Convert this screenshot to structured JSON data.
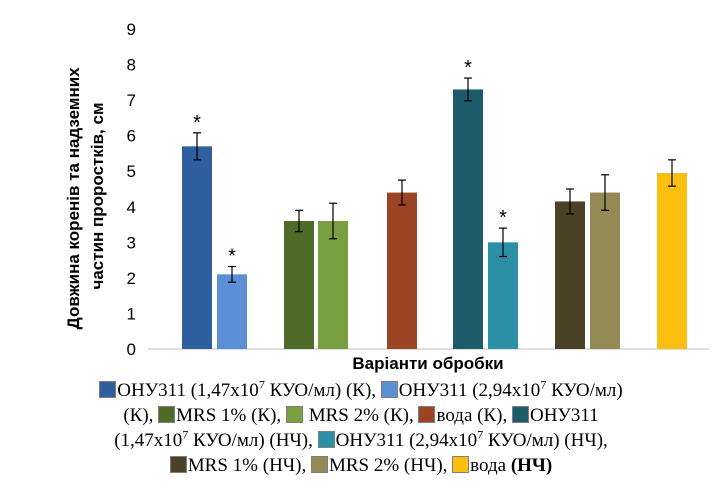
{
  "chart_data": {
    "type": "bar",
    "ylabel_line1": "Довжина коренів та надземних",
    "ylabel_line2": "частин проростків, см",
    "xlabel": "Варіанти обробки",
    "ylim": [
      0,
      9
    ],
    "yticks": [
      "0",
      "1",
      "2",
      "3",
      "4",
      "5",
      "6",
      "7",
      "8",
      "9"
    ],
    "grid": "none",
    "legend_position": "bottom",
    "series": [
      {
        "value": 5.7,
        "error": 0.38,
        "star": "*",
        "color": "#2f5f9e"
      },
      {
        "value": 2.1,
        "error": 0.22,
        "star": "*",
        "color": "#5b8fd6"
      },
      {
        "value": 3.6,
        "error": 0.3,
        "star": "",
        "color": "#4e6b2a"
      },
      {
        "value": 3.6,
        "error": 0.5,
        "star": "",
        "color": "#78a040"
      },
      {
        "value": 4.4,
        "error": 0.35,
        "star": "",
        "color": "#9c4524"
      },
      {
        "value": 7.3,
        "error": 0.32,
        "star": "*",
        "color": "#1d5a6a"
      },
      {
        "value": 3.0,
        "error": 0.4,
        "star": "*",
        "color": "#2b8fa6"
      },
      {
        "value": 4.15,
        "error": 0.35,
        "star": "",
        "color": "#4a4127"
      },
      {
        "value": 4.4,
        "error": 0.5,
        "star": "",
        "color": "#948a55"
      },
      {
        "value": 4.95,
        "error": 0.37,
        "star": "",
        "color": "#fcbf10"
      }
    ]
  },
  "legend": {
    "lines": [
      [
        {
          "color": "#2f5f9e",
          "pre": "ОНУ311 (1,47x10",
          "sup": "7",
          "post": " КУО/мл) (К),",
          "bold": ""
        },
        {
          "color": "#5b8fd6",
          "pre": "ОНУ311 (2,94x10",
          "sup": "7",
          "post": " КУО/мл)",
          "bold": ""
        }
      ],
      [
        {
          "color": "",
          "pre": "(К),",
          "sup": "",
          "post": "",
          "bold": ""
        },
        {
          "color": "#4e6b2a",
          "pre": "MRS 1% (К),",
          "sup": "",
          "post": "",
          "bold": ""
        },
        {
          "color": "#78a040",
          "pre": " MRS 2% (К),",
          "sup": "",
          "post": "",
          "bold": ""
        },
        {
          "color": "#9c4524",
          "pre": "вода (К),",
          "sup": "",
          "post": "",
          "bold": ""
        },
        {
          "color": "#1d5a6a",
          "pre": "ОНУ311",
          "sup": "",
          "post": "",
          "bold": ""
        }
      ],
      [
        {
          "color": "",
          "pre": "(1,47x10",
          "sup": "7",
          "post": " КУО/мл) (НЧ),",
          "bold": ""
        },
        {
          "color": "#2b8fa6",
          "pre": "ОНУ311 (2,94x10",
          "sup": "7",
          "post": " КУО/мл) (НЧ),",
          "bold": ""
        }
      ],
      [
        {
          "color": "#4a4127",
          "pre": "MRS 1% (НЧ),",
          "sup": "",
          "post": "",
          "bold": ""
        },
        {
          "color": "#948a55",
          "pre": "MRS 2% (НЧ),",
          "sup": "",
          "post": "",
          "bold": ""
        },
        {
          "color": "#fcbf10",
          "pre": "вода ",
          "sup": "",
          "post": "",
          "bold": "(НЧ)"
        }
      ]
    ]
  }
}
